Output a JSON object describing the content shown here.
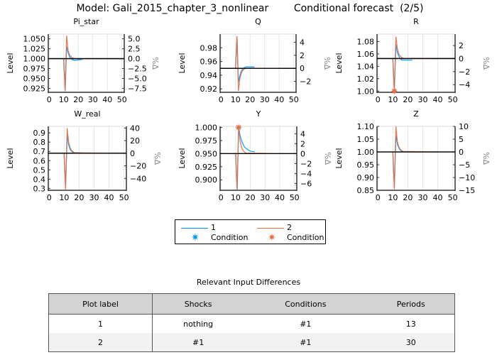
{
  "title": "Model: Gali_2015_chapter_3_nonlinear        Conditional forecast  (2/5)",
  "colors": {
    "series_1": "#009af9",
    "series_2": "#e26f46",
    "baseline": "#000000",
    "grid": "#e6e6e6"
  },
  "chart_data": [
    {
      "type": "line",
      "title": "Pi_star",
      "ylabel": "Level",
      "y2label": "%Δ",
      "xlim": [
        0,
        51
      ],
      "xticks": [
        0,
        10,
        20,
        30,
        40,
        50
      ],
      "ylim": [
        0.915,
        1.062
      ],
      "yticks": [
        "1.050",
        "1.025",
        "1.000",
        "0.975",
        "0.950",
        "0.925"
      ],
      "y2ticks": [
        "5.0",
        "2.5",
        "0.0",
        "-2.5",
        "-5.0",
        "-7.5"
      ],
      "baseline": 1.0,
      "grid": true,
      "series": [
        {
          "name": "1",
          "points": [
            [
              10,
              1.0
            ],
            [
              11,
              0.92
            ],
            [
              12,
              1.03
            ],
            [
              13,
              1.015
            ],
            [
              14,
              1.005
            ],
            [
              15,
              1.0
            ],
            [
              16,
              0.997
            ],
            [
              17,
              0.996
            ],
            [
              18,
              0.996
            ],
            [
              19,
              0.996
            ],
            [
              20,
              0.997
            ],
            [
              21,
              0.997
            ],
            [
              22,
              0.998
            ],
            [
              23,
              0.998
            ]
          ]
        },
        {
          "name": "2",
          "points": [
            [
              10,
              1.0
            ],
            [
              11,
              0.918
            ],
            [
              12,
              1.058
            ],
            [
              13,
              1.02
            ],
            [
              14,
              1.01
            ],
            [
              15,
              1.005
            ],
            [
              16,
              1.002
            ],
            [
              17,
              1.001
            ],
            [
              18,
              1.0
            ],
            [
              40,
              1.0
            ]
          ]
        }
      ],
      "conditions": []
    },
    {
      "type": "line",
      "title": "Q",
      "ylabel": "Level",
      "y2label": "%Δ",
      "xlim": [
        0,
        51
      ],
      "xticks": [
        0,
        10,
        20,
        30,
        40,
        50
      ],
      "ylim": [
        0.915,
        1.0
      ],
      "yticks": [
        "0.98",
        "0.96",
        "0.94",
        "0.92"
      ],
      "y2ticks": [
        "4",
        "2",
        "0",
        "-2"
      ],
      "baseline": 0.95,
      "grid": true,
      "series": [
        {
          "name": "1",
          "points": [
            [
              10,
              0.95
            ],
            [
              11,
              0.995
            ],
            [
              12,
              0.93
            ],
            [
              13,
              0.94
            ],
            [
              14,
              0.946
            ],
            [
              15,
              0.949
            ],
            [
              16,
              0.951
            ],
            [
              17,
              0.952
            ],
            [
              23,
              0.952
            ]
          ]
        },
        {
          "name": "2",
          "points": [
            [
              10,
              0.95
            ],
            [
              11,
              0.997
            ],
            [
              12,
              0.917
            ],
            [
              13,
              0.935
            ],
            [
              14,
              0.943
            ],
            [
              15,
              0.947
            ],
            [
              16,
              0.949
            ],
            [
              17,
              0.95
            ],
            [
              40,
              0.95
            ]
          ]
        }
      ],
      "conditions": []
    },
    {
      "type": "line",
      "title": "R",
      "ylabel": "Level",
      "y2label": "%Δ",
      "xlim": [
        0,
        51
      ],
      "xticks": [
        0,
        10,
        20,
        30,
        40,
        50
      ],
      "ylim": [
        0.998,
        1.092
      ],
      "yticks": [
        "1.08",
        "1.06",
        "1.04",
        "1.02",
        "1.00"
      ],
      "y2ticks": [
        "2",
        "0",
        "-2",
        "-4"
      ],
      "baseline": 1.0525,
      "grid": true,
      "series": [
        {
          "name": "1",
          "points": [
            [
              10,
              1.0525
            ],
            [
              11,
              1.0
            ],
            [
              12,
              1.075
            ],
            [
              13,
              1.062
            ],
            [
              14,
              1.056
            ],
            [
              15,
              1.052
            ],
            [
              16,
              1.05
            ],
            [
              23,
              1.05
            ]
          ]
        },
        {
          "name": "2",
          "points": [
            [
              10,
              1.0525
            ],
            [
              11,
              1.0
            ],
            [
              12,
              1.088
            ],
            [
              13,
              1.068
            ],
            [
              14,
              1.06
            ],
            [
              15,
              1.056
            ],
            [
              16,
              1.054
            ],
            [
              17,
              1.053
            ],
            [
              40,
              1.0525
            ]
          ]
        }
      ],
      "conditions": [
        {
          "series": "2",
          "x": 11,
          "y": 1.0
        }
      ]
    },
    {
      "type": "line",
      "title": "W_real",
      "ylabel": "Level",
      "y2label": "%Δ",
      "xlim": [
        0,
        51
      ],
      "xticks": [
        0,
        10,
        20,
        30,
        40,
        50
      ],
      "ylim": [
        0.28,
        0.97
      ],
      "yticks": [
        "0.9",
        "0.8",
        "0.7",
        "0.6",
        "0.5",
        "0.4",
        "0.3"
      ],
      "y2ticks": [
        "40",
        "20",
        "0",
        "-20",
        "-40"
      ],
      "baseline": 0.68,
      "grid": true,
      "series": [
        {
          "name": "1",
          "points": [
            [
              10,
              0.68
            ],
            [
              11,
              0.32
            ],
            [
              12,
              0.87
            ],
            [
              13,
              0.77
            ],
            [
              14,
              0.72
            ],
            [
              15,
              0.7
            ],
            [
              16,
              0.69
            ],
            [
              17,
              0.685
            ],
            [
              23,
              0.682
            ]
          ]
        },
        {
          "name": "2",
          "points": [
            [
              10,
              0.68
            ],
            [
              11,
              0.29
            ],
            [
              12,
              0.95
            ],
            [
              13,
              0.8
            ],
            [
              14,
              0.74
            ],
            [
              15,
              0.71
            ],
            [
              16,
              0.695
            ],
            [
              17,
              0.685
            ],
            [
              40,
              0.68
            ]
          ]
        }
      ],
      "conditions": []
    },
    {
      "type": "line",
      "title": "Y",
      "ylabel": "Level",
      "y2label": "%Δ",
      "xlim": [
        0,
        51
      ],
      "xticks": [
        0,
        10,
        20,
        30,
        40,
        50
      ],
      "ylim": [
        0.88,
        1.002
      ],
      "yticks": [
        "1.000",
        "0.975",
        "0.950",
        "0.925",
        "0.900"
      ],
      "y2ticks": [
        "4",
        "2",
        "0",
        "-2",
        "-4",
        "-6"
      ],
      "baseline": 0.95,
      "grid": true,
      "series": [
        {
          "name": "1",
          "points": [
            [
              10,
              0.95
            ],
            [
              11,
              0.88
            ],
            [
              12,
              1.0
            ],
            [
              13,
              0.985
            ],
            [
              14,
              0.975
            ],
            [
              15,
              0.968
            ],
            [
              16,
              0.963
            ],
            [
              17,
              0.96
            ],
            [
              18,
              0.958
            ],
            [
              19,
              0.956
            ],
            [
              20,
              0.955
            ],
            [
              21,
              0.954
            ],
            [
              22,
              0.954
            ],
            [
              23,
              0.953
            ]
          ]
        },
        {
          "name": "2",
          "points": [
            [
              10,
              0.95
            ],
            [
              11,
              0.882
            ],
            [
              12,
              1.0
            ],
            [
              13,
              0.975
            ],
            [
              14,
              0.962
            ],
            [
              15,
              0.956
            ],
            [
              16,
              0.953
            ],
            [
              17,
              0.951
            ],
            [
              40,
              0.95
            ]
          ]
        }
      ],
      "conditions": [
        {
          "series": "2",
          "x": 12,
          "y": 1.0
        }
      ]
    },
    {
      "type": "line",
      "title": "Z",
      "ylabel": "Level",
      "y2label": "%Δ",
      "xlim": [
        0,
        51
      ],
      "xticks": [
        0,
        10,
        20,
        30,
        40,
        50
      ],
      "ylim": [
        0.85,
        1.1
      ],
      "yticks": [
        "1.10",
        "1.05",
        "1.00",
        "0.95",
        "0.90",
        "0.85"
      ],
      "y2ticks": [
        "10",
        "5",
        "0",
        "-5",
        "-10",
        "-15"
      ],
      "baseline": 1.0,
      "grid": true,
      "series": [
        {
          "name": "1",
          "points": [
            [
              10,
              1.0
            ],
            [
              11,
              0.86
            ],
            [
              12,
              1.065
            ],
            [
              13,
              1.03
            ],
            [
              14,
              1.015
            ],
            [
              15,
              1.007
            ],
            [
              16,
              1.003
            ],
            [
              17,
              1.001
            ],
            [
              23,
              1.0
            ]
          ]
        },
        {
          "name": "2",
          "points": [
            [
              10,
              1.0
            ],
            [
              11,
              0.855
            ],
            [
              12,
              1.1
            ],
            [
              13,
              1.04
            ],
            [
              14,
              1.02
            ],
            [
              15,
              1.01
            ],
            [
              16,
              1.005
            ],
            [
              17,
              1.002
            ],
            [
              40,
              1.0
            ]
          ]
        }
      ],
      "conditions": []
    }
  ],
  "legend": {
    "placement": "bottom-center",
    "items": [
      {
        "label": "1",
        "condition_label": "Condition",
        "color": "#009af9"
      },
      {
        "label": "2",
        "condition_label": "Condition",
        "color": "#e26f46"
      }
    ]
  },
  "table": {
    "title": "Relevant Input Differences",
    "headers": [
      "Plot label",
      "Shocks",
      "Conditions",
      "Periods"
    ],
    "rows": [
      [
        "1",
        "nothing",
        "#1",
        "13"
      ],
      [
        "2",
        "#1",
        "#1",
        "30"
      ]
    ]
  }
}
